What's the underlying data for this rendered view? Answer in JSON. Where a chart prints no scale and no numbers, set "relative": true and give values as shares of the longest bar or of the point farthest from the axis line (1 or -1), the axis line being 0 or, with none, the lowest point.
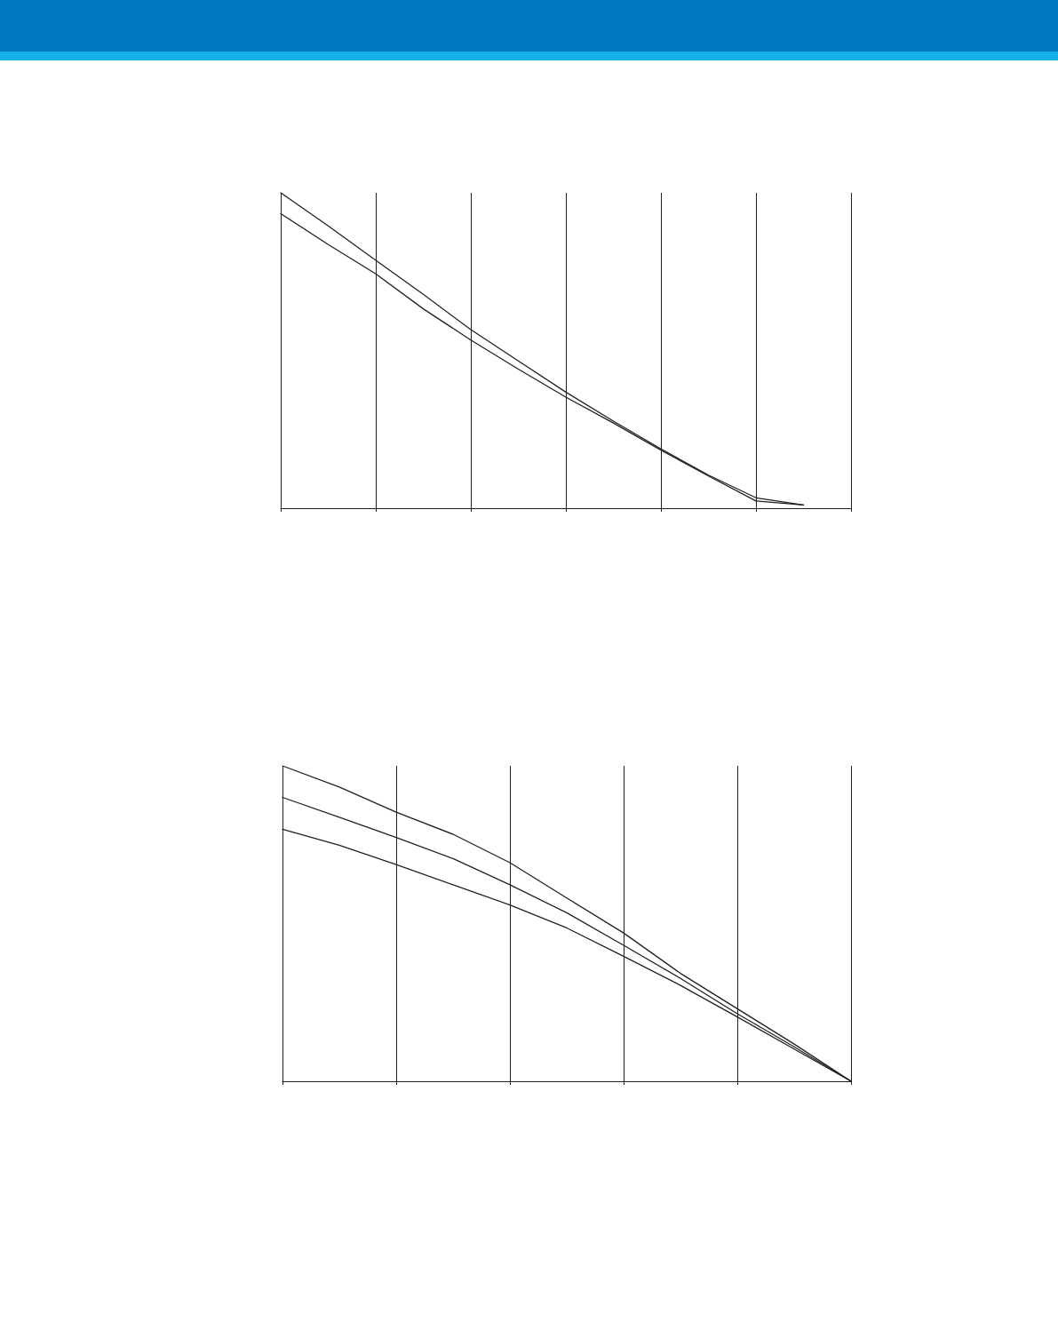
{
  "chart_data": [
    {
      "type": "line",
      "relative": true,
      "categories": [
        null,
        null,
        null,
        null,
        null,
        null,
        null,
        null,
        null,
        null,
        null,
        null,
        null
      ],
      "series": [
        {
          "color": "#231f20",
          "values": [
            1,
            0.895,
            0.786,
            0.678,
            0.566,
            0.467,
            0.368,
            0.276,
            0.188,
            0.105,
            0.033,
            0.01,
            null
          ]
        },
        {
          "color": "#231f20",
          "values": [
            0.934,
            0.836,
            0.743,
            0.632,
            0.533,
            0.441,
            0.352,
            0.27,
            0.184,
            0.102,
            0.023,
            0.01,
            null
          ]
        }
      ],
      "grid": "x",
      "marker": "none",
      "line_style": "solid"
    },
    {
      "type": "line",
      "relative": true,
      "categories": [
        null,
        null,
        null,
        null,
        null,
        null,
        null,
        null,
        null,
        null,
        null
      ],
      "series": [
        {
          "color": "#231f20",
          "values": [
            1,
            0.933,
            0.853,
            0.783,
            0.693,
            0.581,
            0.47,
            0.342,
            0.23,
            0.118,
            0
          ]
        },
        {
          "color": "#231f20",
          "values": [
            0.9,
            0.837,
            0.773,
            0.706,
            0.623,
            0.534,
            0.431,
            0.326,
            0.214,
            0.109,
            0
          ]
        },
        {
          "color": "#231f20",
          "values": [
            0.799,
            0.748,
            0.687,
            0.623,
            0.559,
            0.486,
            0.396,
            0.304,
            0.204,
            0.102,
            0
          ]
        }
      ],
      "grid": "x",
      "marker": "none",
      "line_style": "solid"
    }
  ]
}
